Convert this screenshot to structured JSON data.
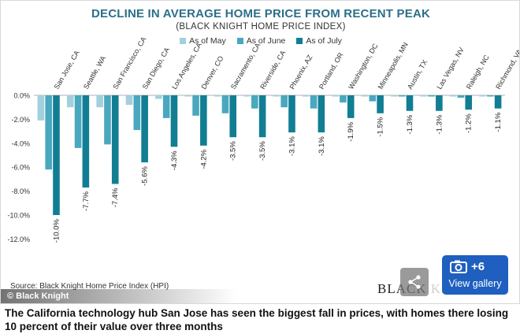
{
  "chart_data": {
    "type": "bar",
    "title": "DECLINE IN AVERAGE HOME PRICE FROM RECENT PEAK",
    "subtitle": "(BLACK KNIGHT HOME PRICE INDEX)",
    "categories": [
      "San Jose, CA",
      "Seattle, WA",
      "San Francisco, CA",
      "San Diego, CA",
      "Los Angeles, CA",
      "Denver, CO",
      "Sacramento, CA",
      "Riverside, CA",
      "Phoenix, AZ",
      "Portland, OR",
      "Washington, DC",
      "Minneapolis, MN",
      "Austin, TX",
      "Las Vegas, NV",
      "Raleigh, NC",
      "Richmond, VA"
    ],
    "series": [
      {
        "name": "As of May",
        "color": "#a3d0dd",
        "values": [
          -2.1,
          -1.0,
          -1.0,
          -0.8,
          -0.3,
          -0.1,
          -0.1,
          -0.1,
          -0.1,
          -0.1,
          -0.1,
          -0.1,
          -0.1,
          -0.1,
          -0.1,
          -0.1
        ]
      },
      {
        "name": "As of June",
        "color": "#4aa8be",
        "values": [
          -6.2,
          -4.4,
          -4.1,
          -2.9,
          -1.9,
          -1.7,
          -1.5,
          -1.1,
          -1.0,
          -1.1,
          -0.6,
          -0.5,
          -0.1,
          -0.1,
          -0.2,
          -0.1
        ]
      },
      {
        "name": "As of July",
        "color": "#117e94",
        "values": [
          -10.0,
          -7.7,
          -7.4,
          -5.6,
          -4.3,
          -4.2,
          -3.5,
          -3.5,
          -3.1,
          -3.1,
          -1.9,
          -1.5,
          -1.3,
          -1.3,
          -1.2,
          -1.1
        ]
      }
    ],
    "data_labels": [
      "-10.0%",
      "-7.7%",
      "-7.4%",
      "-5.6%",
      "-4.3%",
      "-4.2%",
      "-3.5%",
      "-3.5%",
      "-3.1%",
      "-3.1%",
      "-1.9%",
      "-1.5%",
      "-1.3%",
      "-1.3%",
      "-1.2%",
      "-1.1%"
    ],
    "y_ticks": [
      "0.0%",
      "-2.0%",
      "-4.0%",
      "-6.0%",
      "-8.0%",
      "-10.0%",
      "-12.0%"
    ],
    "ylim": [
      -12,
      0
    ],
    "legend_position": "top-center",
    "grid": false
  },
  "source": "Source: Black Knight Home Price Index (HPI)",
  "credit": "© Black Knight",
  "logo_text": "BLACK KNIGHT",
  "gallery": {
    "count": "+6",
    "label": "View gallery"
  },
  "caption": "The California technology hub San Jose has seen the biggest fall in prices, with homes there losing 10 percent of their value over three months",
  "colors": {
    "title": "#2c6f89",
    "gallery_button": "#1e5fbf"
  },
  "icons": {
    "share": "share-icon",
    "camera": "camera-icon"
  }
}
